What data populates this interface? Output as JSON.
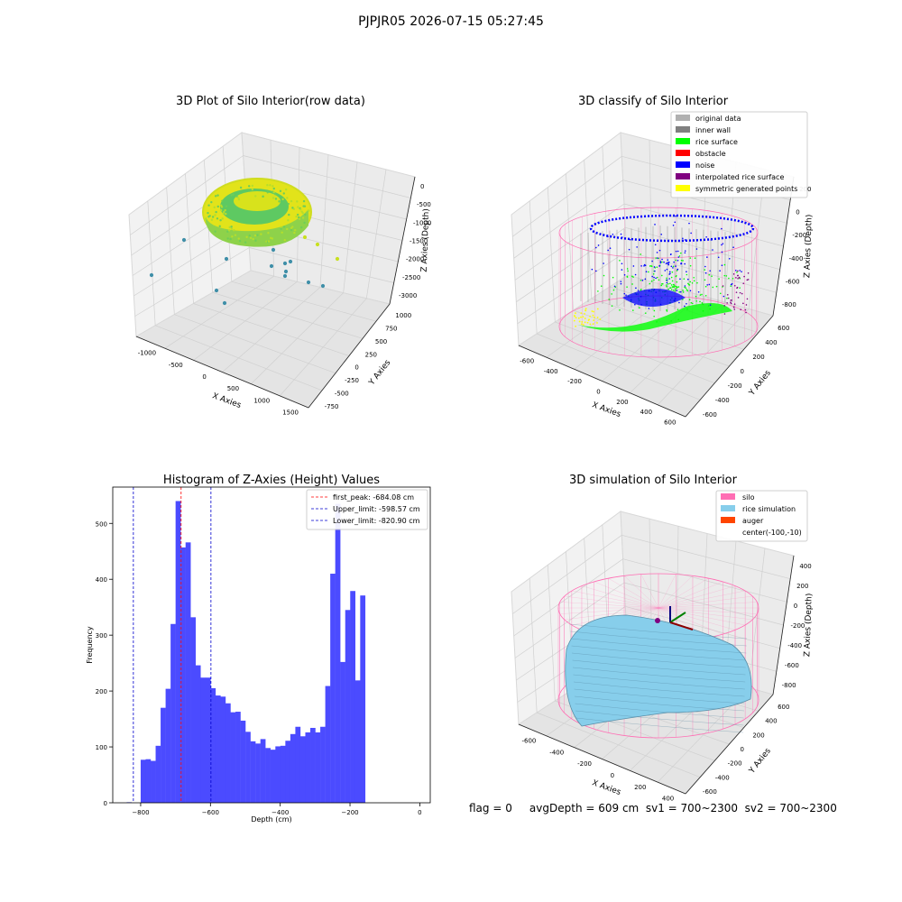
{
  "suptitle": "PJPJR05 2026-07-15 05:27:45",
  "footer": {
    "text": "flag = 0     avgDepth = 609 cm  sv1 = 700~2300  sv2 = 700~2300"
  },
  "colors": {
    "hist_bar": "#4b4bff",
    "peak_line": "#ff0000",
    "limit_line": "#0000cc",
    "silo_wire": "#ff6eb4",
    "rice_sim": "#87ceeb",
    "auger": "#ff4500",
    "rice_surface": "#00ff00",
    "noise": "#0000ff",
    "inner_wall": "#808080",
    "original": "#b0b0b0",
    "interpolated": "#800080",
    "symmetric": "#ffff00"
  },
  "panels": {
    "raw": {
      "title": "3D Plot of Silo Interior(row data)",
      "xlabel": "X Axies",
      "ylabel": "Y Axies",
      "zlabel": "Z Axies (Depth)",
      "xticks": [
        "-1000",
        "-500",
        "0",
        "500",
        "1000",
        "1500"
      ],
      "yticks": [
        "-750",
        "-500",
        "-250",
        "0",
        "250",
        "500",
        "750",
        "1000"
      ],
      "zticks": [
        "0",
        "-500",
        "-1000",
        "-1500",
        "-2000",
        "-2500",
        "-3000"
      ]
    },
    "classify": {
      "title": "3D classify of Silo Interior",
      "xlabel": "X Axies",
      "ylabel": "Y Axies",
      "zlabel": "Z Axies (Depth)",
      "xticks": [
        "-600",
        "-400",
        "-200",
        "0",
        "200",
        "400",
        "600"
      ],
      "yticks": [
        "-600",
        "-400",
        "-200",
        "0",
        "200",
        "400",
        "600"
      ],
      "zticks": [
        "200",
        "0",
        "-200",
        "-400",
        "-600",
        "-800"
      ],
      "legend": [
        {
          "label": "original data",
          "color": "#b0b0b0"
        },
        {
          "label": "inner wall",
          "color": "#808080"
        },
        {
          "label": "rice surface",
          "color": "#00ff00"
        },
        {
          "label": "obstacle",
          "color": "#ff0000"
        },
        {
          "label": "noise",
          "color": "#0000ff"
        },
        {
          "label": "interpolated rice surface",
          "color": "#800080"
        },
        {
          "label": "symmetric generated points",
          "color": "#ffff00"
        }
      ]
    },
    "simulation": {
      "title": "3D simulation of Silo Interior",
      "xlabel": "X Axies",
      "ylabel": "Y Axies",
      "zlabel": "Z Axies (Depth)",
      "xticks": [
        "-600",
        "-400",
        "-200",
        "0",
        "200",
        "400"
      ],
      "yticks": [
        "-600",
        "-400",
        "-200",
        "0",
        "200",
        "400",
        "600"
      ],
      "zticks": [
        "400",
        "200",
        "0",
        "-200",
        "-400",
        "-600",
        "-800"
      ],
      "legend": [
        {
          "label": "silo",
          "color": "#ff6eb4"
        },
        {
          "label": "rice simulation",
          "color": "#87ceeb"
        },
        {
          "label": "auger",
          "color": "#ff4500"
        },
        {
          "label": "center(-100,-10)",
          "color": ""
        }
      ]
    }
  },
  "chart_data": {
    "type": "bar",
    "title": "Histogram of Z-Axies (Height) Values",
    "xlabel": "Depth (cm)",
    "ylabel": "Frequency",
    "xlim": [
      -880,
      30
    ],
    "ylim": [
      0,
      565
    ],
    "xticks": [
      -800,
      -600,
      -400,
      -200,
      0
    ],
    "yticks": [
      0,
      100,
      200,
      300,
      400,
      500
    ],
    "bin_width": 14.3,
    "bin_start": -800,
    "stray_bins": [
      {
        "x": -840,
        "value": 1
      }
    ],
    "values": [
      77,
      78,
      75,
      102,
      170,
      204,
      320,
      540,
      457,
      466,
      332,
      246,
      224,
      224,
      205,
      192,
      190,
      178,
      162,
      163,
      147,
      127,
      110,
      106,
      114,
      98,
      95,
      101,
      102,
      111,
      123,
      136,
      119,
      126,
      134,
      126,
      136,
      209,
      410,
      535,
      252,
      345,
      379,
      219,
      371
    ],
    "lines": [
      {
        "label": "first_peak: -684.08 cm",
        "x": -684.08,
        "color": "#ff0000"
      },
      {
        "label": "Upper_limit: -598.57 cm",
        "x": -598.57,
        "color": "#0000cc"
      },
      {
        "label": "Lower_limit: -820.90 cm",
        "x": -820.9,
        "color": "#0000cc"
      }
    ],
    "legend_position": "top-right",
    "grid": false
  }
}
